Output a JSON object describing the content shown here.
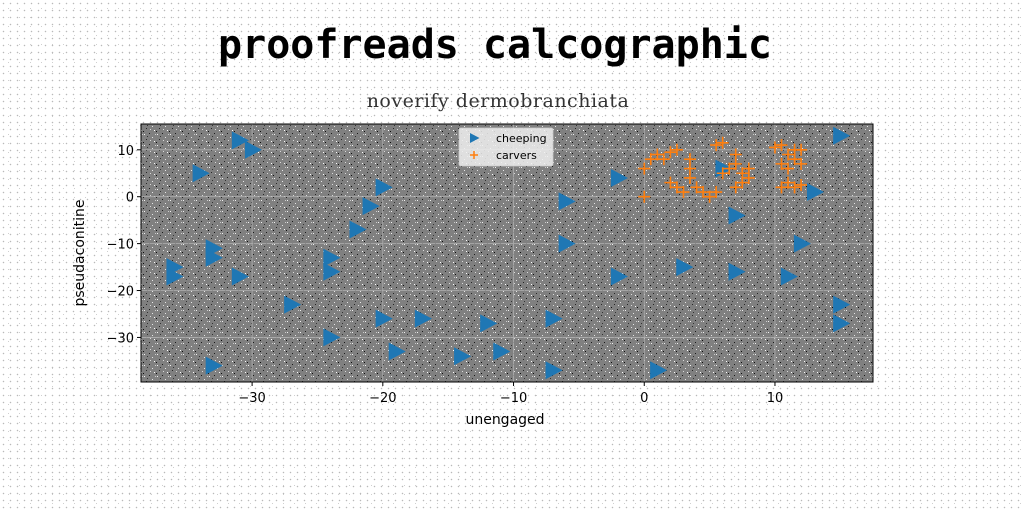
{
  "chart_data": {
    "type": "scatter",
    "title": "proofreads calcographic",
    "subtitle": "noverify dermobranchiata",
    "xlabel": "unengaged",
    "ylabel": "pseudaconitine",
    "xlim": [
      -38.5,
      17.5
    ],
    "ylim": [
      -39.5,
      15.5
    ],
    "xticks": [
      -30,
      -20,
      -10,
      0,
      10
    ],
    "yticks": [
      -30,
      -20,
      -10,
      0,
      10
    ],
    "grid": true,
    "legend_position": "top-center",
    "series": [
      {
        "name": "cheeping",
        "marker": "triangle-right",
        "color": "#1f77b4",
        "points": [
          [
            -31,
            12
          ],
          [
            -30,
            10
          ],
          [
            -34,
            5
          ],
          [
            -20,
            2
          ],
          [
            -21,
            -2
          ],
          [
            -22,
            -7
          ],
          [
            -33,
            -11
          ],
          [
            -33,
            -13
          ],
          [
            -24,
            -13
          ],
          [
            -24,
            -16
          ],
          [
            -36,
            -15
          ],
          [
            -36,
            -17
          ],
          [
            -31,
            -17
          ],
          [
            -27,
            -23
          ],
          [
            -24,
            -30
          ],
          [
            -20,
            -26
          ],
          [
            -17,
            -26
          ],
          [
            -19,
            -33
          ],
          [
            -14,
            -34
          ],
          [
            -12,
            -27
          ],
          [
            -11,
            -33
          ],
          [
            -7,
            -26
          ],
          [
            -7,
            -37
          ],
          [
            -33,
            -36
          ],
          [
            -6,
            -1
          ],
          [
            -6,
            -10
          ],
          [
            -2,
            4
          ],
          [
            -2,
            -17
          ],
          [
            1,
            -37
          ],
          [
            3,
            -15
          ],
          [
            6,
            6
          ],
          [
            7,
            -4
          ],
          [
            7,
            -16
          ],
          [
            11,
            -17
          ],
          [
            12,
            -10
          ],
          [
            13,
            1
          ],
          [
            15,
            13
          ],
          [
            15,
            -23
          ],
          [
            15,
            -27
          ]
        ]
      },
      {
        "name": "carvers",
        "marker": "plus",
        "color": "#ff7f0e",
        "points": [
          [
            0,
            6
          ],
          [
            0,
            0
          ],
          [
            0.5,
            8
          ],
          [
            1,
            9
          ],
          [
            1.5,
            8
          ],
          [
            2,
            9.5
          ],
          [
            2.5,
            10
          ],
          [
            2,
            3
          ],
          [
            2.5,
            2
          ],
          [
            3,
            1
          ],
          [
            3.5,
            4
          ],
          [
            3.5,
            6
          ],
          [
            3.5,
            8
          ],
          [
            4,
            2
          ],
          [
            4.5,
            1
          ],
          [
            5,
            0
          ],
          [
            5.5,
            1
          ],
          [
            5.5,
            11
          ],
          [
            6,
            11.5
          ],
          [
            6,
            5
          ],
          [
            6.5,
            6
          ],
          [
            7,
            9
          ],
          [
            7,
            7
          ],
          [
            7.5,
            5
          ],
          [
            7.5,
            3
          ],
          [
            7,
            2
          ],
          [
            8,
            4
          ],
          [
            8,
            6
          ],
          [
            10,
            10.5
          ],
          [
            10.5,
            11
          ],
          [
            10.5,
            7
          ],
          [
            11,
            9
          ],
          [
            11,
            6
          ],
          [
            11.5,
            8
          ],
          [
            11.5,
            10
          ],
          [
            12,
            10
          ],
          [
            12,
            7
          ],
          [
            11,
            3
          ],
          [
            11.5,
            2
          ],
          [
            12,
            2.5
          ],
          [
            10.5,
            2
          ]
        ]
      }
    ]
  }
}
